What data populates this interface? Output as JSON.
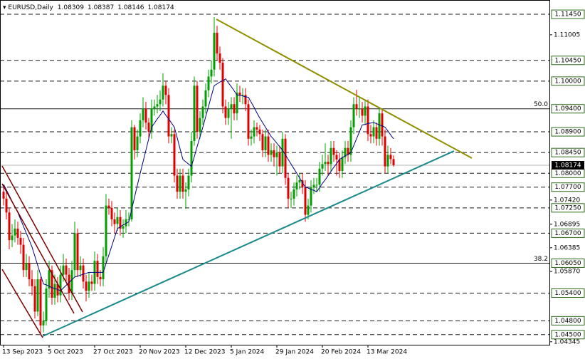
{
  "chart_data": {
    "type": "candlestick",
    "symbol": "EURUSD,Daily",
    "categories": [
      "13 Sep 2023",
      null,
      null,
      null,
      null,
      null,
      null,
      null,
      null,
      null,
      null,
      null,
      null,
      null,
      null,
      null,
      "5 Oct 2023",
      null,
      null,
      null,
      null,
      null,
      null,
      null,
      null,
      null,
      null,
      null,
      null,
      null,
      null,
      null,
      "27 Oct 2023",
      null,
      null,
      null,
      null,
      null,
      null,
      null,
      null,
      null,
      null,
      null,
      null,
      null,
      null,
      null,
      "20 Nov 2023",
      null,
      null,
      null,
      null,
      null,
      null,
      null,
      null,
      null,
      null,
      null,
      null,
      null,
      null,
      null,
      "12 Dec 2023",
      null,
      null,
      null,
      null,
      null,
      null,
      null,
      null,
      null,
      null,
      null,
      null,
      null,
      null,
      null,
      "5 Jan 2024",
      null,
      null,
      null,
      null,
      null,
      null,
      null,
      null,
      null,
      null,
      null,
      null,
      null,
      null,
      null,
      "29 Jan 2024",
      null,
      null,
      null,
      null,
      null,
      null,
      null,
      null,
      null,
      null,
      null,
      null,
      null,
      null,
      null,
      "20 Feb 2024",
      null,
      null,
      null,
      null,
      null,
      null,
      null,
      null,
      null,
      null,
      null,
      null,
      null,
      null,
      null,
      "13 Mar 2024",
      null,
      null,
      null,
      null,
      null,
      null,
      null,
      null,
      null
    ],
    "candles": [
      [
        1.076,
        1.0775,
        1.073,
        1.0745
      ],
      [
        1.0745,
        1.076,
        1.07,
        1.0715
      ],
      [
        1.0715,
        1.0725,
        1.0635,
        1.0655
      ],
      [
        1.0655,
        1.069,
        1.064,
        1.0665
      ],
      [
        1.0665,
        1.07,
        1.065,
        1.068
      ],
      [
        1.068,
        1.0695,
        1.0645,
        1.066
      ],
      [
        1.066,
        1.0675,
        1.0625,
        1.0645
      ],
      [
        1.0645,
        1.066,
        1.0575,
        1.059
      ],
      [
        1.059,
        1.0625,
        1.0575,
        1.0605
      ],
      [
        1.0605,
        1.062,
        1.0555,
        1.057
      ],
      [
        1.057,
        1.059,
        1.0535,
        1.0555
      ],
      [
        1.0555,
        1.057,
        1.0485,
        1.05
      ],
      [
        1.05,
        1.059,
        1.049,
        1.057
      ],
      [
        1.057,
        1.0575,
        1.0448,
        1.047
      ],
      [
        1.047,
        1.05,
        1.0455,
        1.048
      ],
      [
        1.048,
        1.057,
        1.047,
        1.055
      ],
      [
        1.055,
        1.061,
        1.053,
        1.059
      ],
      [
        1.059,
        1.06,
        1.0515,
        1.053
      ],
      [
        1.053,
        1.058,
        1.0515,
        1.056
      ],
      [
        1.056,
        1.0575,
        1.052,
        1.0535
      ],
      [
        1.0535,
        1.06,
        1.052,
        1.058
      ],
      [
        1.058,
        1.0625,
        1.0565,
        1.06
      ],
      [
        1.06,
        1.0615,
        1.0565,
        1.058
      ],
      [
        1.058,
        1.0595,
        1.0525,
        1.054
      ],
      [
        1.054,
        1.061,
        1.0525,
        1.059
      ],
      [
        1.059,
        1.0695,
        1.0575,
        1.067
      ],
      [
        1.067,
        1.068,
        1.0575,
        1.059
      ],
      [
        1.059,
        1.062,
        1.0575,
        1.06
      ],
      [
        1.06,
        1.0615,
        1.055,
        1.0565
      ],
      [
        1.0565,
        1.058,
        1.0522,
        1.0545
      ],
      [
        1.0545,
        1.0585,
        1.053,
        1.0565
      ],
      [
        1.0565,
        1.058,
        1.0545,
        1.056
      ],
      [
        1.056,
        1.063,
        1.0545,
        1.061
      ],
      [
        1.061,
        1.0625,
        1.056,
        1.0575
      ],
      [
        1.0575,
        1.059,
        1.0555,
        1.057
      ],
      [
        1.057,
        1.064,
        1.0555,
        1.062
      ],
      [
        1.062,
        1.0755,
        1.0605,
        1.073
      ],
      [
        1.073,
        1.0745,
        1.071,
        1.0725
      ],
      [
        1.0725,
        1.074,
        1.0685,
        1.07
      ],
      [
        1.07,
        1.0715,
        1.067,
        1.069
      ],
      [
        1.069,
        1.0725,
        1.0675,
        1.0705
      ],
      [
        1.0705,
        1.072,
        1.0665,
        1.068
      ],
      [
        1.068,
        1.07,
        1.066,
        1.0685
      ],
      [
        1.0685,
        1.072,
        1.067,
        1.07
      ],
      [
        1.07,
        1.0715,
        1.0685,
        1.07
      ],
      [
        1.07,
        1.0915,
        1.0695,
        1.09
      ],
      [
        1.09,
        1.0905,
        1.083,
        1.085
      ],
      [
        1.085,
        1.0895,
        1.0835,
        1.088
      ],
      [
        1.088,
        1.093,
        1.0865,
        1.0915
      ],
      [
        1.0915,
        1.0965,
        1.09,
        1.094
      ],
      [
        1.094,
        1.0955,
        1.0895,
        1.091
      ],
      [
        1.091,
        1.092,
        1.0875,
        1.089
      ],
      [
        1.089,
        1.096,
        1.0875,
        1.094
      ],
      [
        1.094,
        1.096,
        1.0925,
        1.0945
      ],
      [
        1.0945,
        1.097,
        1.093,
        1.095
      ],
      [
        1.095,
        1.098,
        1.0935,
        1.096
      ],
      [
        1.096,
        1.1017,
        1.0945,
        1.099
      ],
      [
        1.099,
        1.1,
        1.095,
        1.097
      ],
      [
        1.097,
        1.0985,
        1.0865,
        1.088
      ],
      [
        1.088,
        1.09,
        1.0865,
        1.0885
      ],
      [
        1.0885,
        1.0895,
        1.078,
        1.0795
      ],
      [
        1.0795,
        1.081,
        1.0745,
        1.076
      ],
      [
        1.076,
        1.081,
        1.0745,
        1.0795
      ],
      [
        1.0795,
        1.081,
        1.0745,
        1.076
      ],
      [
        1.076,
        1.078,
        1.0723,
        1.0765
      ],
      [
        1.0765,
        1.081,
        1.075,
        1.0795
      ],
      [
        1.0795,
        1.089,
        1.078,
        1.087
      ],
      [
        1.087,
        1.101,
        1.086,
        1.099
      ],
      [
        1.099,
        1.1,
        1.0875,
        1.089
      ],
      [
        1.089,
        1.0935,
        1.0875,
        1.092
      ],
      [
        1.092,
        1.096,
        1.0905,
        1.0945
      ],
      [
        1.0945,
        1.0995,
        1.093,
        1.098
      ],
      [
        1.098,
        1.1025,
        1.0965,
        1.101
      ],
      [
        1.101,
        1.1045,
        1.0995,
        1.1025
      ],
      [
        1.1025,
        1.1139,
        1.101,
        1.1105
      ],
      [
        1.1105,
        1.112,
        1.1045,
        1.106
      ],
      [
        1.106,
        1.1075,
        1.1025,
        1.104
      ],
      [
        1.104,
        1.105,
        1.093,
        1.0945
      ],
      [
        1.0945,
        1.096,
        1.0905,
        1.092
      ],
      [
        1.092,
        1.0955,
        1.0905,
        1.094
      ],
      [
        1.094,
        1.0965,
        1.0875,
        1.095
      ],
      [
        1.095,
        1.0965,
        1.0915,
        1.093
      ],
      [
        1.093,
        1.0995,
        1.0915,
        1.0975
      ],
      [
        1.0975,
        1.099,
        1.0955,
        1.097
      ],
      [
        1.097,
        1.0985,
        1.095,
        1.097
      ],
      [
        1.097,
        1.0985,
        1.0935,
        1.095
      ],
      [
        1.095,
        1.096,
        1.086,
        1.0875
      ],
      [
        1.0875,
        1.0895,
        1.086,
        1.088
      ],
      [
        1.088,
        1.0915,
        1.0865,
        1.09
      ],
      [
        1.09,
        1.091,
        1.088,
        1.0895
      ],
      [
        1.0895,
        1.0905,
        1.087,
        1.0885
      ],
      [
        1.0885,
        1.0895,
        1.0835,
        1.085
      ],
      [
        1.085,
        1.0895,
        1.0835,
        1.088
      ],
      [
        1.088,
        1.0895,
        1.0825,
        1.084
      ],
      [
        1.084,
        1.0865,
        1.0825,
        1.085
      ],
      [
        1.085,
        1.0865,
        1.0815,
        1.0835
      ],
      [
        1.0835,
        1.086,
        1.0795,
        1.0845
      ],
      [
        1.0845,
        1.086,
        1.08,
        1.0815
      ],
      [
        1.0815,
        1.089,
        1.08,
        1.0875
      ],
      [
        1.0875,
        1.0885,
        1.0775,
        1.079
      ],
      [
        1.079,
        1.08,
        1.0725,
        1.0745
      ],
      [
        1.0745,
        1.076,
        1.0725,
        1.0745
      ],
      [
        1.0745,
        1.078,
        1.073,
        1.0765
      ],
      [
        1.0765,
        1.0795,
        1.075,
        1.078
      ],
      [
        1.078,
        1.08,
        1.0765,
        1.0785
      ],
      [
        1.0785,
        1.08,
        1.0755,
        1.077
      ],
      [
        1.077,
        1.0785,
        1.0695,
        1.071
      ],
      [
        1.071,
        1.0745,
        1.07,
        1.073
      ],
      [
        1.073,
        1.0785,
        1.0715,
        1.077
      ],
      [
        1.077,
        1.079,
        1.0755,
        1.0775
      ],
      [
        1.0775,
        1.079,
        1.076,
        1.0775
      ],
      [
        1.0775,
        1.0825,
        1.076,
        1.081
      ],
      [
        1.081,
        1.084,
        1.0795,
        1.082
      ],
      [
        1.082,
        1.0865,
        1.0805,
        1.0825
      ],
      [
        1.0825,
        1.084,
        1.0795,
        1.082
      ],
      [
        1.082,
        1.087,
        1.0805,
        1.0855
      ],
      [
        1.0855,
        1.087,
        1.0825,
        1.084
      ],
      [
        1.084,
        1.085,
        1.0795,
        1.083
      ],
      [
        1.083,
        1.0845,
        1.079,
        1.0805
      ],
      [
        1.0805,
        1.085,
        1.079,
        1.0835
      ],
      [
        1.0835,
        1.087,
        1.082,
        1.0855
      ],
      [
        1.0855,
        1.087,
        1.0825,
        1.084
      ],
      [
        1.084,
        1.0915,
        1.0825,
        1.09
      ],
      [
        1.09,
        1.0965,
        1.0885,
        1.095
      ],
      [
        1.095,
        1.0981,
        1.0925,
        1.094
      ],
      [
        1.094,
        1.0965,
        1.092,
        1.094
      ],
      [
        1.094,
        1.0955,
        1.091,
        1.0925
      ],
      [
        1.0925,
        1.096,
        1.0905,
        1.0945
      ],
      [
        1.0945,
        1.096,
        1.087,
        1.0885
      ],
      [
        1.0885,
        1.0905,
        1.0865,
        1.088
      ],
      [
        1.088,
        1.0915,
        1.0865,
        1.09
      ],
      [
        1.09,
        1.091,
        1.086,
        1.0875
      ],
      [
        1.0875,
        1.094,
        1.086,
        1.093
      ],
      [
        1.093,
        1.094,
        1.086,
        1.088
      ],
      [
        1.088,
        1.0895,
        1.08,
        1.0815
      ],
      [
        1.0815,
        1.086,
        1.08,
        1.084
      ],
      [
        1.084,
        1.0855,
        1.082,
        1.08309
      ],
      [
        1.08309,
        1.08387,
        1.08146,
        1.08174
      ]
    ],
    "ma": {
      "color": "#000080",
      "values": [
        1.0776,
        1.0764,
        1.0752,
        1.0739,
        1.0727,
        1.0715,
        1.07,
        1.0685,
        1.067,
        1.0655,
        1.064,
        1.062,
        1.06,
        1.058,
        1.056,
        1.0558,
        1.0555,
        1.0552,
        1.055,
        1.0548,
        1.0545,
        1.0551,
        1.0557,
        1.0563,
        1.0569,
        1.0575,
        1.0577,
        1.0579,
        1.0581,
        1.0583,
        1.0585,
        1.0585,
        1.0585,
        1.0585,
        1.0585,
        1.0585,
        1.0604,
        1.0623,
        1.0642,
        1.0661,
        1.068,
        1.0684,
        1.0688,
        1.0691,
        1.0695,
        1.0721,
        1.0748,
        1.0774,
        1.08,
        1.0825,
        1.085,
        1.0875,
        1.09,
        1.0909,
        1.0918,
        1.0926,
        1.0935,
        1.0926,
        1.0918,
        1.0909,
        1.09,
        1.0877,
        1.0853,
        1.083,
        1.0825,
        1.082,
        1.0815,
        1.0836,
        1.0858,
        1.0879,
        1.09,
        1.0923,
        1.0945,
        1.0968,
        1.099,
        1.0994,
        1.0998,
        1.1001,
        1.1005,
        1.0996,
        1.0988,
        1.0979,
        1.097,
        1.0969,
        1.0968,
        1.0966,
        1.0965,
        1.0954,
        1.0943,
        1.0931,
        1.092,
        1.091,
        1.09,
        1.089,
        1.088,
        1.0873,
        1.0865,
        1.0858,
        1.085,
        1.084,
        1.083,
        1.082,
        1.081,
        1.08,
        1.079,
        1.078,
        1.077,
        1.0768,
        1.0765,
        1.0763,
        1.076,
        1.0769,
        1.0778,
        1.0786,
        1.0795,
        1.0804,
        1.0813,
        1.0821,
        1.083,
        1.0834,
        1.0838,
        1.0841,
        1.0845,
        1.086,
        1.0875,
        1.089,
        1.0905,
        1.0906,
        1.0908,
        1.0909,
        1.091,
        1.0908,
        1.0905,
        1.0903,
        1.09,
        1.0892,
        1.0883,
        1.0875
      ]
    },
    "ylim": [
      1.0428,
      1.1176
    ],
    "yticks": [
      1.11005,
      {
        "value": 1.0742,
        "label": "1.07420"
      },
      1.06895,
      1.06385,
      {
        "value": 1.0587,
        "label": "1.05870"
      },
      1.04345
    ],
    "levels": [
      {
        "value": 1.1145,
        "label": "1.11450",
        "style": "dashed"
      },
      {
        "value": 1.1045,
        "label": "1.10450",
        "style": "dashed"
      },
      {
        "value": 1.1,
        "label": "1.10000",
        "style": "dashed"
      },
      {
        "value": 1.094,
        "label": "1.09400",
        "style": "solid",
        "note": "50.0"
      },
      {
        "value": 1.089,
        "label": "1.08900",
        "style": "dashed"
      },
      {
        "value": 1.0845,
        "label": "1.08450",
        "style": "dashed"
      },
      {
        "value": 1.08,
        "label": "1.08000",
        "style": "dashed"
      },
      {
        "value": 1.077,
        "label": "1.07700",
        "style": "dashed"
      },
      {
        "value": 1.0725,
        "label": "1.07250",
        "style": "dashed"
      },
      {
        "value": 1.067,
        "label": "1.06700",
        "style": "dashed"
      },
      {
        "value": 1.0605,
        "label": "1.06050",
        "style": "solid",
        "note": "38.2"
      },
      {
        "value": 1.054,
        "label": "1.05400",
        "style": "dashed"
      },
      {
        "value": 1.048,
        "label": "1.04800",
        "style": "dashed"
      },
      {
        "value": 1.045,
        "label": "1.04500",
        "style": "dashed"
      }
    ],
    "bull_color": "#00a000",
    "bear_color": "#e00000",
    "level_color": "#2e6b1e"
  }
}
